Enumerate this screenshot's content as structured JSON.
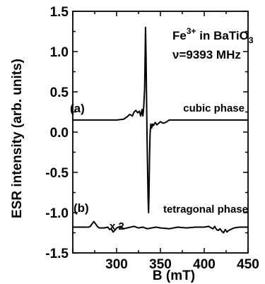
{
  "chart_data": {
    "type": "line",
    "xlabel": "B (mT)",
    "ylabel": "ESR intensity (arb. units)",
    "xlim": [
      250,
      450
    ],
    "ylim": [
      -1.5,
      1.5
    ],
    "x_ticks": [
      300,
      350,
      400,
      450
    ],
    "y_ticks": [
      -1.5,
      -1.0,
      -0.5,
      0.0,
      0.5,
      1.0,
      1.5
    ],
    "y_tick_labels": [
      "-1.5",
      "-1.0",
      "-0.5",
      "0.0",
      "0.5",
      "1.0",
      "1.5"
    ],
    "grid": false,
    "legend": "none",
    "series": [
      {
        "label": "(a)",
        "baseline": 0.15,
        "x": [
          250,
          300,
          308,
          312,
          315,
          318,
          320,
          322,
          324,
          326,
          327.5,
          329,
          330,
          331,
          332,
          332.5,
          333,
          333.6,
          334.2,
          334.8,
          335.4,
          336,
          336.5,
          337,
          337.6,
          338.2,
          339,
          340,
          341,
          342,
          344,
          346,
          348,
          350,
          353,
          356,
          360,
          370,
          400,
          450
        ],
        "y": [
          0.15,
          0.15,
          0.16,
          0.19,
          0.22,
          0.2,
          0.25,
          0.27,
          0.24,
          0.26,
          0.2,
          0.28,
          0.2,
          0.32,
          0.55,
          0.9,
          1.3,
          0.95,
          0.4,
          -0.1,
          -0.5,
          -0.85,
          -1.0,
          -0.75,
          -0.3,
          -0.02,
          0.1,
          0.05,
          0.1,
          0.08,
          0.12,
          0.09,
          0.11,
          0.13,
          0.11,
          0.12,
          0.15,
          0.15,
          0.15,
          0.15
        ]
      },
      {
        "label": "(b)",
        "baseline": -1.18,
        "x": [
          250,
          268,
          270,
          272,
          274,
          276,
          278,
          280,
          286,
          290,
          292,
          294,
          296,
          298,
          300,
          304,
          308,
          312,
          316,
          320,
          325,
          330,
          335,
          340,
          345,
          350,
          360,
          370,
          380,
          390,
          400,
          405,
          408,
          410,
          412,
          414,
          416,
          418,
          420,
          422,
          424,
          426,
          428,
          430,
          434,
          440,
          450
        ],
        "y": [
          -1.18,
          -1.18,
          -1.17,
          -1.14,
          -1.11,
          -1.14,
          -1.17,
          -1.19,
          -1.19,
          -1.18,
          -1.21,
          -1.2,
          -1.24,
          -1.22,
          -1.19,
          -1.17,
          -1.2,
          -1.19,
          -1.18,
          -1.17,
          -1.19,
          -1.18,
          -1.2,
          -1.19,
          -1.18,
          -1.19,
          -1.2,
          -1.18,
          -1.19,
          -1.18,
          -1.18,
          -1.17,
          -1.19,
          -1.2,
          -1.17,
          -1.21,
          -1.22,
          -1.2,
          -1.23,
          -1.25,
          -1.21,
          -1.24,
          -1.22,
          -1.21,
          -1.19,
          -1.18,
          -1.18
        ]
      }
    ]
  },
  "annotations": {
    "sample_prefix": "Fe",
    "sample_sup": "3+",
    "sample_mid": " in BaTiO",
    "sample_sub": "3",
    "frequency": "ν=9393 MHz",
    "label_a": "(a)",
    "label_b": "(b)",
    "phase_a": "cubic phase",
    "phase_b": "tetragonal phase",
    "scale_b": "x 2"
  }
}
